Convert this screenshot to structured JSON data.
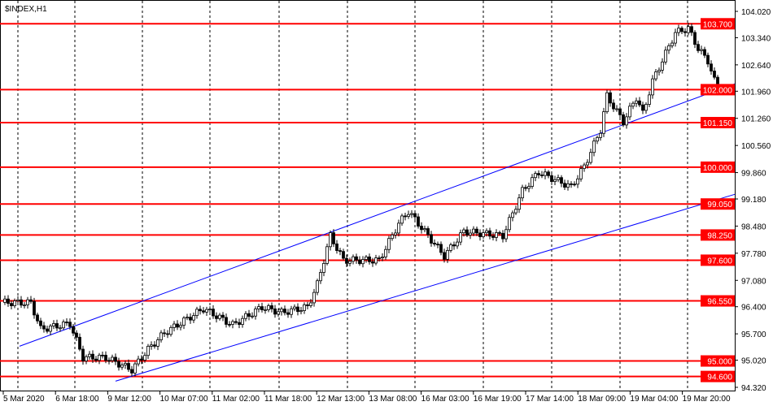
{
  "chart_data": {
    "type": "candlestick",
    "title": "$INDEX,H1",
    "ylim": [
      94.32,
      104.02
    ],
    "y_ticks": [
      "104.020",
      "103.340",
      "102.640",
      "101.960",
      "101.260",
      "100.560",
      "99.860",
      "99.180",
      "98.480",
      "97.780",
      "97.080",
      "96.400",
      "95.700",
      "95.020",
      "94.320"
    ],
    "x_tick_labels": [
      "5 Mar 2020",
      "6 Mar 18:00",
      "9 Mar 12:00",
      "10 Mar 07:00",
      "11 Mar 02:00",
      "11 Mar 18:00",
      "12 Mar 13:00",
      "13 Mar 08:00",
      "16 Mar 03:00",
      "16 Mar 19:00",
      "17 Mar 14:00",
      "18 Mar 09:00",
      "19 Mar 04:00",
      "19 Mar 20:00"
    ],
    "grid": "vertical dashed",
    "horizontal_levels": [
      {
        "price": 103.7,
        "label": "103.700"
      },
      {
        "price": 102.0,
        "label": "102.000"
      },
      {
        "price": 101.15,
        "label": "101.150"
      },
      {
        "price": 100.0,
        "label": "100.000"
      },
      {
        "price": 99.05,
        "label": "99.050"
      },
      {
        "price": 98.25,
        "label": "98.250"
      },
      {
        "price": 97.6,
        "label": "97.600"
      },
      {
        "price": 96.55,
        "label": "96.550"
      },
      {
        "price": 95.0,
        "label": "95.000"
      },
      {
        "price": 94.6,
        "label": "94.600"
      }
    ],
    "channel_lines": [
      {
        "from": {
          "bar": 5.5,
          "price": 95.38
        },
        "to": {
          "bar": 226,
          "price": 102.15
        }
      },
      {
        "from": {
          "bar": 35,
          "price": 94.48
        },
        "to": {
          "bar": 226,
          "price": 99.3
        }
      }
    ],
    "price_path": [
      [
        1,
        96.51
      ],
      [
        9,
        96.5
      ],
      [
        12,
        95.82
      ],
      [
        21,
        95.97
      ],
      [
        24,
        95.3
      ],
      [
        25,
        95.09
      ],
      [
        32,
        95.09
      ],
      [
        40,
        94.77
      ],
      [
        45,
        95.3
      ],
      [
        50,
        95.72
      ],
      [
        62,
        96.35
      ],
      [
        71,
        95.93
      ],
      [
        80,
        96.39
      ],
      [
        86,
        96.25
      ],
      [
        94,
        96.39
      ],
      [
        97,
        96.98
      ],
      [
        101,
        98.23
      ],
      [
        105,
        97.6
      ],
      [
        116,
        97.6
      ],
      [
        122,
        98.55
      ],
      [
        125,
        98.86
      ],
      [
        129,
        98.44
      ],
      [
        136,
        97.71
      ],
      [
        142,
        98.34
      ],
      [
        154,
        98.23
      ],
      [
        160,
        99.39
      ],
      [
        165,
        99.87
      ],
      [
        175,
        99.49
      ],
      [
        179,
        100.02
      ],
      [
        184,
        100.96
      ],
      [
        186,
        101.84
      ],
      [
        191,
        101.17
      ],
      [
        195,
        101.8
      ],
      [
        197,
        101.38
      ],
      [
        200,
        102.22
      ],
      [
        207,
        103.47
      ],
      [
        211,
        103.58
      ],
      [
        214,
        103.06
      ],
      [
        217,
        102.75
      ],
      [
        220,
        101.97
      ]
    ],
    "colors": {
      "level": "#ff0000",
      "channel": "#0000ff",
      "bull": "#ffffff",
      "bear": "#000000"
    }
  }
}
